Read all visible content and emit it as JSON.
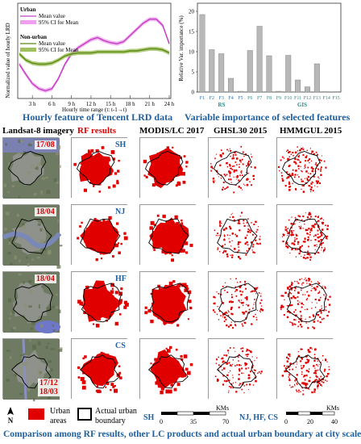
{
  "charts": {
    "lrd": {
      "caption": "Hourly feature of Tencent LRD data",
      "ylabel": "Normalized value of hourly LRD",
      "xlabel": "Hourly time range (t: t-1→t)",
      "legend": {
        "urban_title": "Urban",
        "urban_mean": "Mean value",
        "urban_ci": "95% CI for Mean",
        "nonurban_title": "Non-urban",
        "nonurban_mean": "Mean value",
        "nonurban_ci": "95% CI for Mean"
      },
      "colors": {
        "urban": "#c040c0",
        "urban_ci": "#f0a0f0",
        "nonurban": "#5a8a10",
        "nonurban_ci": "#a0c060"
      }
    },
    "varimp": {
      "caption": "Variable importance of selected features",
      "group_rs": "RS",
      "group_gis": "GIS",
      "bar_color": "#b8b8b8"
    }
  },
  "chart_data": [
    {
      "type": "line",
      "x": [
        "1h",
        "2h",
        "3h",
        "4h",
        "5h",
        "6h",
        "7h",
        "8h",
        "9h",
        "10h",
        "11h",
        "12h",
        "13h",
        "14h",
        "15h",
        "16h",
        "17h",
        "18h",
        "19h",
        "20h",
        "21h",
        "22h",
        "23h",
        "24h"
      ],
      "xticks": [
        "3 h",
        "6 h",
        "9 h",
        "12 h",
        "15 h",
        "18 h",
        "21 h",
        "24 h"
      ],
      "series": [
        {
          "name": "Urban",
          "values": [
            0.32,
            0.22,
            0.13,
            0.08,
            0.06,
            0.08,
            0.18,
            0.32,
            0.42,
            0.48,
            0.52,
            0.56,
            0.58,
            0.55,
            0.53,
            0.52,
            0.54,
            0.6,
            0.66,
            0.72,
            0.76,
            0.76,
            0.7,
            0.52
          ]
        },
        {
          "name": "Non-urban",
          "values": [
            0.42,
            0.36,
            0.33,
            0.32,
            0.32,
            0.33,
            0.36,
            0.4,
            0.42,
            0.43,
            0.43,
            0.43,
            0.44,
            0.44,
            0.44,
            0.44,
            0.44,
            0.45,
            0.45,
            0.46,
            0.47,
            0.47,
            0.46,
            0.43
          ]
        }
      ],
      "ylim": [
        0,
        0.9
      ]
    },
    {
      "type": "bar",
      "categories": [
        "F1",
        "F2",
        "F3",
        "F4",
        "F5",
        "F6",
        "F7",
        "F8",
        "F9",
        "F10",
        "F11",
        "F12",
        "F13",
        "F14",
        "F15"
      ],
      "values": [
        19.2,
        10.5,
        9.5,
        3.4,
        0.2,
        10.3,
        16.3,
        9.0,
        0.2,
        9.1,
        3.0,
        1.3,
        7.0,
        0.1,
        0.1
      ],
      "ylabel": "Relative Var. importance (%)",
      "yticks": [
        0,
        5,
        10,
        15,
        20
      ],
      "ylim": [
        0,
        22
      ]
    }
  ],
  "grid": {
    "columns": [
      "Landsat-8 imagery",
      "RF results",
      "MODIS/LC 2017",
      "GHSL30 2015",
      "HMMGUL 2015"
    ],
    "rows": [
      {
        "city": "SH",
        "date": "17/08"
      },
      {
        "city": "NJ",
        "date": "18/04"
      },
      {
        "city": "HF",
        "date": "18/04"
      },
      {
        "city": "CS",
        "date": "17/12",
        "date2": "18/03"
      }
    ]
  },
  "legend": {
    "urban_label_1": "Urban",
    "urban_label_2": "areas",
    "boundary_label_1": "Actual urban",
    "boundary_label_2": "boundary",
    "north": "N",
    "scale1_city": "SH",
    "scale1_ticks": [
      "0",
      "35",
      "70"
    ],
    "scale2_city": "NJ, HF, CS",
    "scale2_ticks": [
      "0",
      "20",
      "40"
    ],
    "units": "KMs"
  },
  "bottom_caption": "Comparison among RF results, other LC products and actual urban boundary at city scale"
}
